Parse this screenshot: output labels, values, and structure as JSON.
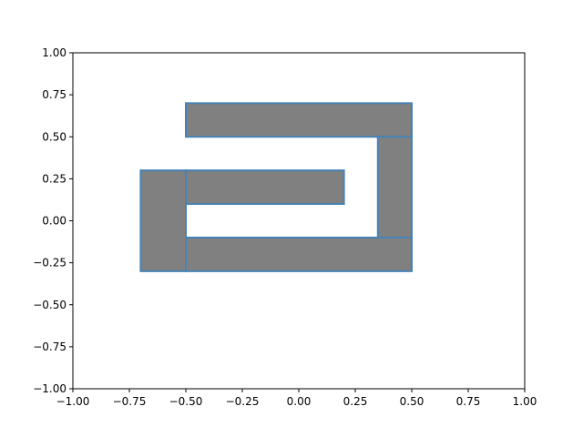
{
  "chart_data": {
    "type": "polygon-patches",
    "title": "",
    "xlabel": "",
    "ylabel": "",
    "xlim": [
      -1.0,
      1.0
    ],
    "ylim": [
      -1.0,
      1.0
    ],
    "grid": false,
    "x_ticks": [
      -1.0,
      -0.75,
      -0.5,
      -0.25,
      0.0,
      0.25,
      0.5,
      0.75,
      1.0
    ],
    "x_tick_labels": [
      "−1.00",
      "−0.75",
      "−0.50",
      "−0.25",
      "0.00",
      "0.25",
      "0.50",
      "0.75",
      "1.00"
    ],
    "y_ticks": [
      -1.0,
      -0.75,
      -0.5,
      -0.25,
      0.0,
      0.25,
      0.5,
      0.75,
      1.0
    ],
    "y_tick_labels": [
      "−1.00",
      "−0.75",
      "−0.50",
      "−0.25",
      "0.00",
      "0.25",
      "0.50",
      "0.75",
      "1.00"
    ],
    "fill_color": "#808080",
    "edge_color": "#4682b4",
    "rectangles": [
      {
        "x0": -0.5,
        "x1": 0.5,
        "y0": 0.5,
        "y1": 0.7
      },
      {
        "x0": 0.35,
        "x1": 0.5,
        "y0": -0.1,
        "y1": 0.5
      },
      {
        "x0": -0.5,
        "x1": 0.5,
        "y0": -0.3,
        "y1": -0.1
      },
      {
        "x0": -0.7,
        "x1": -0.5,
        "y0": -0.3,
        "y1": 0.3
      },
      {
        "x0": -0.5,
        "x1": 0.2,
        "y0": 0.1,
        "y1": 0.3
      }
    ]
  }
}
